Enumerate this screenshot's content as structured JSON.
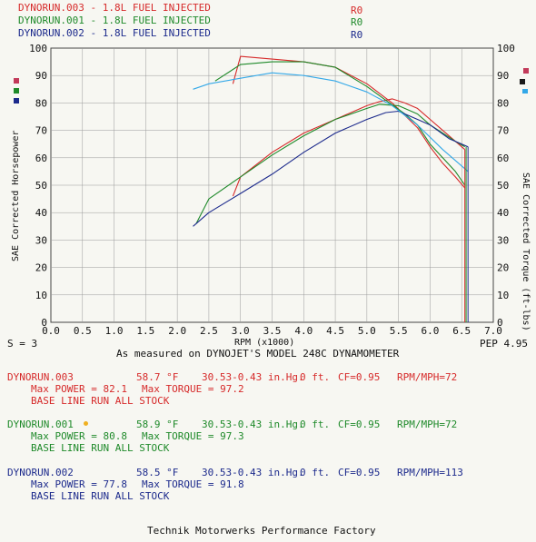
{
  "header": {
    "runs": [
      {
        "label": "DYNORUN.003 - 1.8L FUEL INJECTED",
        "ro": "R0",
        "color": "#d62a2a"
      },
      {
        "label": "DYNORUN.001 - 1.8L FUEL INJECTED",
        "ro": "R0",
        "color": "#1f8a2a"
      },
      {
        "label": "DYNORUN.002 - 1.8L FUEL INJECTED",
        "ro": "R0",
        "color": "#1c2a8c"
      }
    ]
  },
  "chart_data": {
    "type": "line",
    "xlabel": "RPM (x1000)",
    "ylabel_left": "SAE Corrected Horsepower",
    "ylabel_right": "SAE Corrected Torque (ft-lbs)",
    "xlim": [
      0,
      7
    ],
    "ylim": [
      0,
      100
    ],
    "x_ticks": [
      "0.0",
      "0.5",
      "1.0",
      "1.5",
      "2.0",
      "2.5",
      "3.0",
      "3.5",
      "4.0",
      "4.5",
      "5.0",
      "5.5",
      "6.0",
      "6.5",
      "7.0"
    ],
    "y_ticks": [
      "0",
      "10",
      "20",
      "30",
      "40",
      "50",
      "60",
      "70",
      "80",
      "90",
      "100"
    ],
    "grid": true,
    "series": [
      {
        "name": "DYNORUN.003 Power",
        "color": "#d62a2a",
        "x": [
          2.88,
          3.0,
          3.5,
          4.0,
          4.5,
          5.0,
          5.2,
          5.4,
          5.6,
          5.8,
          6.0,
          6.2,
          6.4,
          6.55
        ],
        "y": [
          46,
          53,
          62,
          69,
          74,
          79,
          80.5,
          81.5,
          80,
          78,
          74,
          70,
          66,
          63
        ]
      },
      {
        "name": "DYNORUN.003 Torque",
        "color": "#d62a2a",
        "x": [
          2.88,
          3.0,
          3.5,
          4.0,
          4.5,
          5.0,
          5.4,
          5.8,
          6.0,
          6.2,
          6.4,
          6.55
        ],
        "y": [
          87,
          97,
          96,
          95,
          93,
          87,
          80,
          71,
          64,
          58,
          53,
          49
        ]
      },
      {
        "name": "DYNORUN.001 Power",
        "color": "#1f8a2a",
        "x": [
          2.3,
          2.5,
          3.0,
          3.5,
          4.0,
          4.5,
          5.0,
          5.2,
          5.5,
          5.8,
          6.0,
          6.2,
          6.4,
          6.55
        ],
        "y": [
          36,
          45,
          53,
          61,
          68,
          74,
          78,
          79.5,
          79,
          76,
          72,
          69,
          66,
          64
        ]
      },
      {
        "name": "DYNORUN.001 Torque",
        "color": "#1f8a2a",
        "x": [
          2.6,
          3.0,
          3.5,
          4.0,
          4.5,
          5.0,
          5.3,
          5.6,
          5.8,
          6.0,
          6.2,
          6.4,
          6.55
        ],
        "y": [
          88,
          94,
          95,
          95,
          93,
          86,
          81,
          76,
          72,
          65,
          60,
          55,
          50
        ]
      },
      {
        "name": "DYNORUN.002 Power",
        "color": "#1c2a8c",
        "x": [
          2.25,
          2.5,
          3.0,
          3.5,
          4.0,
          4.5,
          5.0,
          5.3,
          5.5,
          5.8,
          6.0,
          6.3,
          6.6
        ],
        "y": [
          35,
          40,
          47,
          54,
          62,
          69,
          74,
          76.5,
          77,
          74,
          72,
          67,
          64
        ]
      },
      {
        "name": "DYNORUN.002 Torque",
        "color": "#33a8e8",
        "x": [
          2.25,
          2.5,
          3.0,
          3.5,
          4.0,
          4.5,
          5.0,
          5.4,
          5.8,
          6.2,
          6.6
        ],
        "y": [
          85,
          87,
          89,
          91,
          90,
          88,
          84,
          79,
          72,
          63,
          55
        ]
      }
    ]
  },
  "axis_bottom_extra": {
    "left": "S = 3",
    "right": "PEP 4.95"
  },
  "caption": "As measured on DYNOJET'S MODEL 248C DYNAMOMETER",
  "runs_detail": [
    {
      "name": "DYNORUN.003",
      "temp": "58.7 °F",
      "baro": "30.53-0.43 in.Hg.",
      "alt": "0 ft.",
      "cf": "CF=0.95",
      "rpm": "RPM/MPH=72",
      "power": "Max POWER = 82.1",
      "torque": "Max TORQUE = 97.2",
      "note": "BASE LINE RUN ALL STOCK"
    },
    {
      "name": "DYNORUN.001",
      "temp": "58.9 °F",
      "baro": "30.53-0.43 in.Hg.",
      "alt": "0 ft.",
      "cf": "CF=0.95",
      "rpm": "RPM/MPH=72",
      "power": "Max POWER = 80.8",
      "torque": "Max TORQUE = 97.3",
      "note": "BASE LINE RUN ALL STOCK"
    },
    {
      "name": "DYNORUN.002",
      "temp": "58.5 °F",
      "baro": "30.53-0.43 in.Hg.",
      "alt": "0 ft.",
      "cf": "CF=0.95",
      "rpm": "RPM/MPH=113",
      "power": "Max POWER = 77.8",
      "torque": "Max TORQUE = 91.8",
      "note": "BASE LINE RUN ALL STOCK"
    }
  ],
  "footer": "Technik Motorwerks Performance Factory"
}
